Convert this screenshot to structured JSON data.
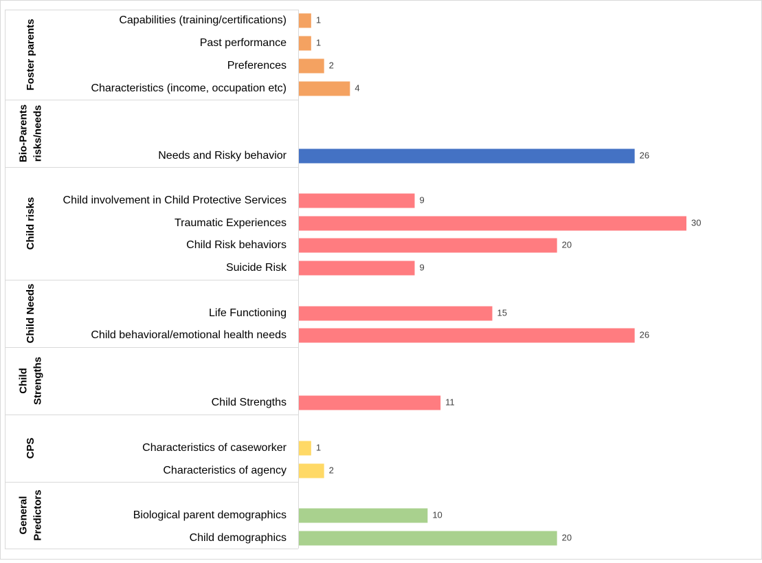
{
  "chart_data": {
    "type": "bar",
    "orientation": "horizontal",
    "title": "",
    "xlabel": "",
    "ylabel": "",
    "xlim": [
      0,
      30
    ],
    "grid": false,
    "legend": "none",
    "groups": [
      {
        "name": "Foster parents",
        "lines": [
          "Foster parents"
        ],
        "color": "#F4A261",
        "items": [
          {
            "label": "Capabilities (training/certifications)",
            "value": 1
          },
          {
            "label": "Past performance",
            "value": 1
          },
          {
            "label": "Preferences",
            "value": 2
          },
          {
            "label": "Characteristics (income, occupation etc)",
            "value": 4
          }
        ]
      },
      {
        "name": "Bio-Parents risks/needs",
        "lines": [
          "Bio-Parents",
          "risks/needs"
        ],
        "color": "#4472C4",
        "items": [
          {
            "label": "Needs and Risky behavior",
            "value": 26
          }
        ]
      },
      {
        "name": "Child risks",
        "lines": [
          "Child risks"
        ],
        "color": "#FF7C80",
        "items": [
          {
            "label": "Child involvement in Child Protective Services",
            "value": 9
          },
          {
            "label": "Traumatic Experiences",
            "value": 30
          },
          {
            "label": "Child Risk behaviors",
            "value": 20
          },
          {
            "label": "Suicide Risk",
            "value": 9
          }
        ]
      },
      {
        "name": "Child Needs",
        "lines": [
          "Child Needs"
        ],
        "color": "#FF7C80",
        "items": [
          {
            "label": "Life Functioning",
            "value": 15
          },
          {
            "label": "Child behavioral/emotional health needs",
            "value": 26
          }
        ]
      },
      {
        "name": "Child Strengths",
        "lines": [
          "Child",
          "Strengths"
        ],
        "color": "#FF7C80",
        "items": [
          {
            "label": "Child Strengths",
            "value": 11
          }
        ]
      },
      {
        "name": "CPS",
        "lines": [
          "CPS"
        ],
        "color": "#FFD966",
        "items": [
          {
            "label": "Characteristics of caseworker",
            "value": 1
          },
          {
            "label": "Characteristics of agency",
            "value": 2
          }
        ]
      },
      {
        "name": "General Predictors",
        "lines": [
          "General",
          "Predictors"
        ],
        "color": "#A9D18E",
        "items": [
          {
            "label": "Biological parent demographics",
            "value": 10
          },
          {
            "label": "Child demographics",
            "value": 20
          }
        ]
      }
    ]
  }
}
